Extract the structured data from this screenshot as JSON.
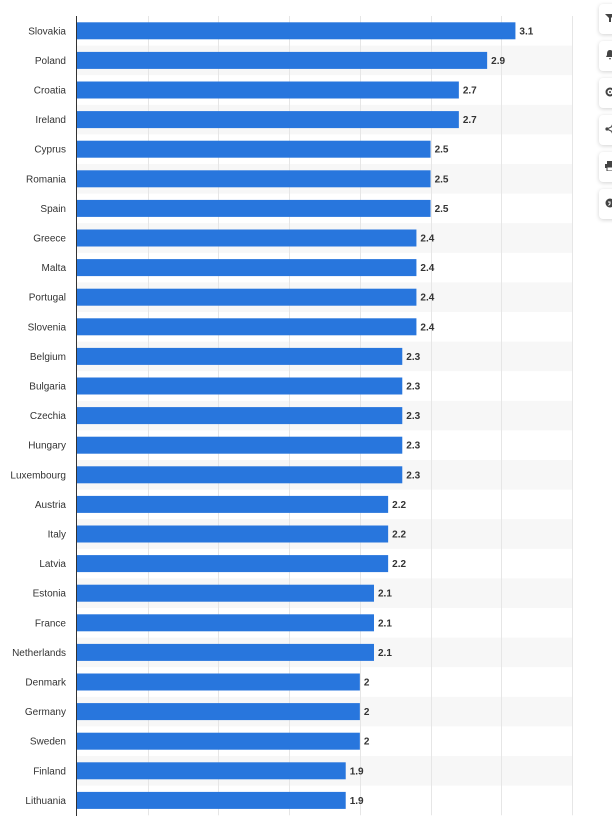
{
  "chart_data": {
    "type": "bar",
    "orientation": "horizontal",
    "title": "",
    "xlabel": "",
    "ylabel": "",
    "xlim": [
      0,
      3.5
    ],
    "grid": true,
    "bar_color": "#2876dd",
    "alt_row_color": "#f7f7f7",
    "categories": [
      "Slovakia",
      "Poland",
      "Croatia",
      "Ireland",
      "Cyprus",
      "Romania",
      "Spain",
      "Greece",
      "Malta",
      "Portugal",
      "Slovenia",
      "Belgium",
      "Bulgaria",
      "Czechia",
      "Hungary",
      "Luxembourg",
      "Austria",
      "Italy",
      "Latvia",
      "Estonia",
      "France",
      "Netherlands",
      "Denmark",
      "Germany",
      "Sweden",
      "Finland",
      "Lithuania"
    ],
    "values": [
      3.1,
      2.9,
      2.7,
      2.7,
      2.5,
      2.5,
      2.5,
      2.4,
      2.4,
      2.4,
      2.4,
      2.3,
      2.3,
      2.3,
      2.3,
      2.3,
      2.2,
      2.2,
      2.2,
      2.1,
      2.1,
      2.1,
      2,
      2,
      2,
      1.9,
      1.9
    ]
  },
  "toolbar": {
    "items": [
      {
        "name": "filter-icon"
      },
      {
        "name": "bell-icon"
      },
      {
        "name": "gear-icon"
      },
      {
        "name": "share-icon"
      },
      {
        "name": "print-icon"
      },
      {
        "name": "quote-icon"
      }
    ]
  }
}
